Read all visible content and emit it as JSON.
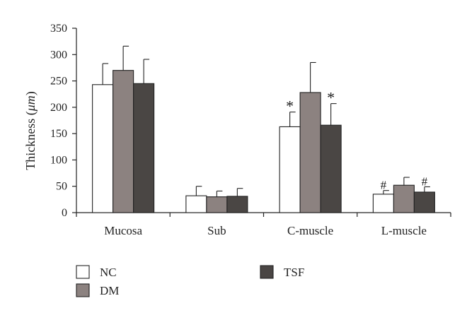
{
  "chart_data": {
    "type": "bar",
    "ylabel_main": "Thickness (",
    "ylabel_unit": "μm",
    "ylabel_close": ")",
    "xlabel": "",
    "ylim": [
      0,
      350
    ],
    "yticks": [
      0,
      50,
      100,
      150,
      200,
      250,
      300,
      350
    ],
    "categories": [
      "Mucosa",
      "Sub",
      "C-muscle",
      "L-muscle"
    ],
    "series": [
      {
        "name": "NC",
        "color": "#ffffff",
        "values": [
          243,
          32,
          163,
          35
        ],
        "errors": [
          40,
          18,
          28,
          7
        ]
      },
      {
        "name": "DM",
        "color": "#8c8280",
        "values": [
          270,
          30,
          228,
          52
        ],
        "errors": [
          46,
          11,
          57,
          15
        ]
      },
      {
        "name": "TSF",
        "color": "#4a4644",
        "values": [
          245,
          31,
          166,
          39
        ],
        "errors": [
          46,
          15,
          41,
          10
        ]
      }
    ],
    "annotations": [
      {
        "category": "C-muscle",
        "series": "NC",
        "text": "*"
      },
      {
        "category": "C-muscle",
        "series": "TSF",
        "text": "*"
      },
      {
        "category": "L-muscle",
        "series": "NC",
        "text": "#"
      },
      {
        "category": "L-muscle",
        "series": "TSF",
        "text": "#"
      }
    ],
    "legend_placement": "bottom",
    "grid": false
  }
}
